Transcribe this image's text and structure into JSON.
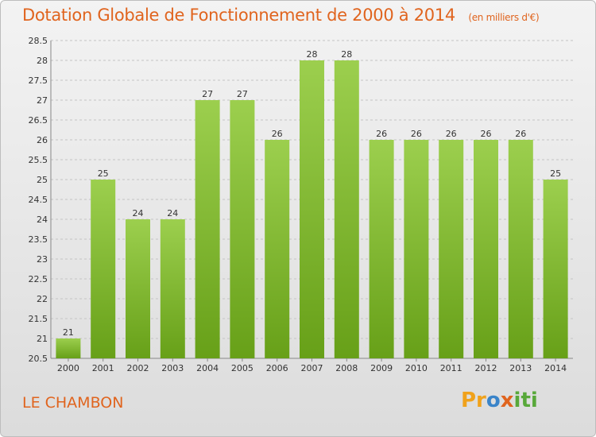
{
  "chart_data": {
    "type": "bar",
    "title": "Dotation Globale de Fonctionnement de 2000 à 2014",
    "subtitle": "(en milliers d'€)",
    "categories": [
      "2000",
      "2001",
      "2002",
      "2003",
      "2004",
      "2005",
      "2006",
      "2007",
      "2008",
      "2009",
      "2010",
      "2011",
      "2012",
      "2013",
      "2014"
    ],
    "values": [
      21,
      25,
      24,
      24,
      27,
      27,
      26,
      28,
      28,
      26,
      26,
      26,
      26,
      26,
      25
    ],
    "ylim": [
      20.5,
      28.5
    ],
    "yticks": [
      "20.5",
      "21",
      "21.5",
      "22",
      "22.5",
      "23",
      "23.5",
      "24",
      "24.5",
      "25",
      "25.5",
      "26",
      "26.5",
      "27",
      "27.5",
      "28",
      "28.5"
    ],
    "xlabel": "",
    "ylabel": "",
    "grid": true,
    "colors": {
      "bar_top": "#9ccf4e",
      "bar_bottom": "#67a018",
      "title": "#e0641e"
    }
  },
  "footer": {
    "commune": "LE CHAMBON",
    "logo_parts": [
      "Pr",
      "o",
      "x",
      "iti"
    ]
  }
}
